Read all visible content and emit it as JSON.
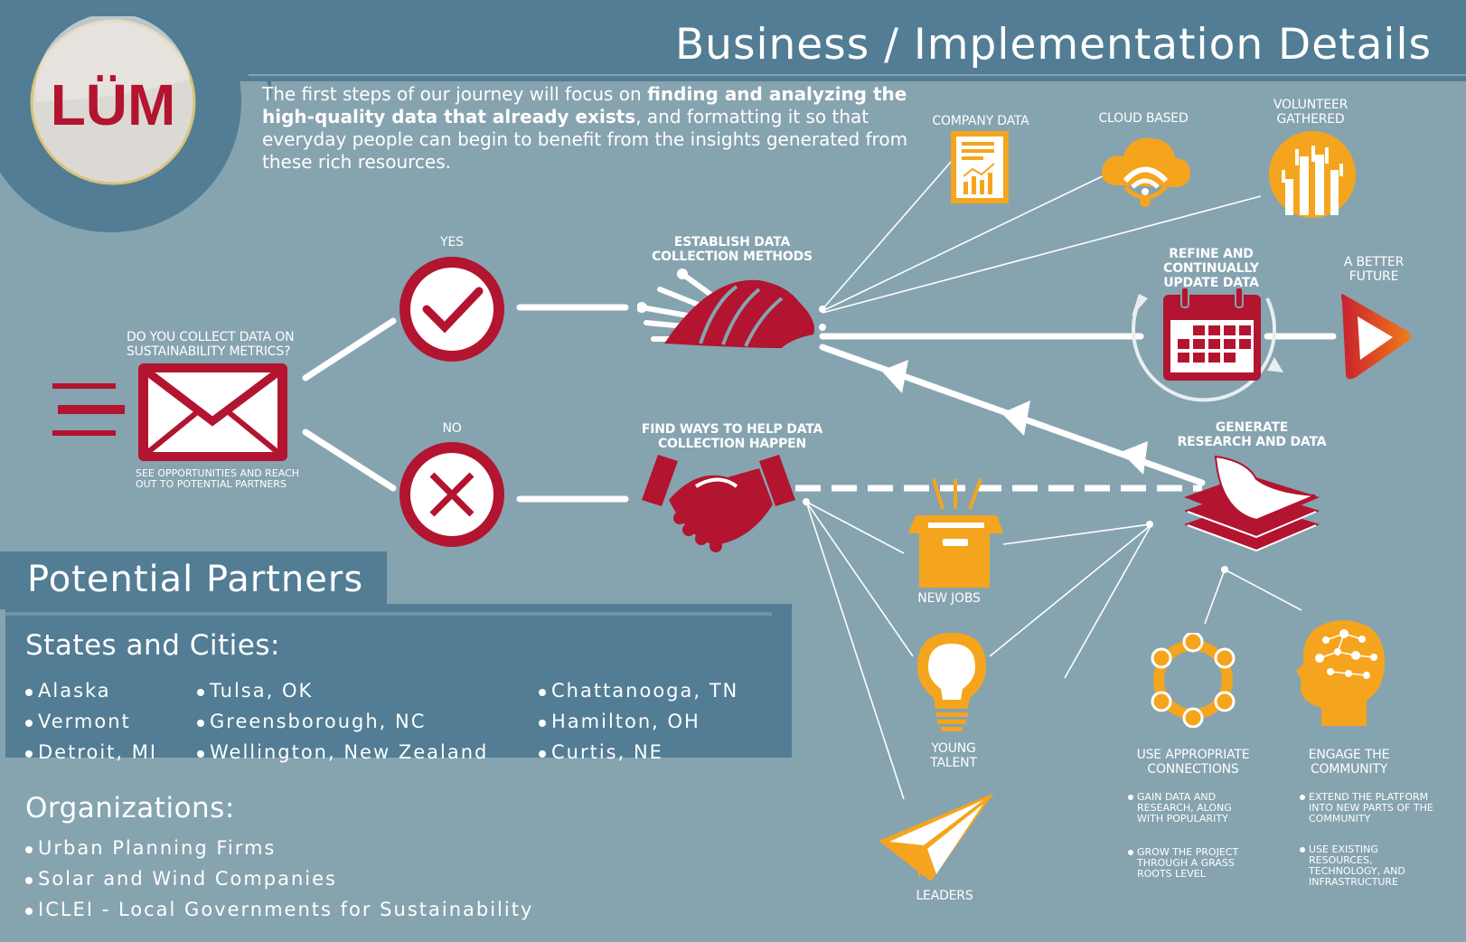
{
  "logo": {
    "text": "LÜM"
  },
  "header": {
    "title": "Business / Implementation Details"
  },
  "intro": {
    "part1": "The first steps of our journey will focus on ",
    "bold": "finding and analyzing the high-quality data that already exists",
    "part2": ", and formatting it so that everyday people can begin to benefit from the insights generated from these rich resources."
  },
  "flow": {
    "question_line1": "DO YOU COLLECT DATA ON",
    "question_line2": "SUSTAINABILITY METRICS?",
    "see_line1": "SEE OPPORTUNITIES AND REACH",
    "see_line2": "OUT TO POTENTIAL PARTNERS",
    "yes": "YES",
    "no": "NO",
    "establish_line1": "ESTABLISH DATA",
    "establish_line2": "COLLECTION METHODS",
    "find_line1": "FIND WAYS TO HELP DATA",
    "find_line2": "COLLECTION HAPPEN",
    "company_data": "COMPANY DATA",
    "cloud_based": "CLOUD BASED",
    "volunteer_line1": "VOLUNTEER",
    "volunteer_line2": "GATHERED",
    "refine_line1": "REFINE AND",
    "refine_line2": "CONTINUALLY",
    "refine_line3": "UPDATE DATA",
    "better_line1": "A BETTER",
    "better_line2": "FUTURE",
    "generate_line1": "GENERATE",
    "generate_line2": "RESEARCH AND DATA",
    "new_jobs": "NEW JOBS",
    "young_line1": "YOUNG",
    "young_line2": "TALENT",
    "leaders": "LEADERS",
    "connections_line1": "USE APPROPRIATE",
    "connections_line2": "CONNECTIONS",
    "community_line1": "ENGAGE THE",
    "community_line2": "COMMUNITY",
    "conn_b1_l1": "GAIN DATA AND",
    "conn_b1_l2": "RESEARCH, ALONG",
    "conn_b1_l3": "WITH POPULARITY",
    "conn_b2_l1": "GROW THE PROJECT",
    "conn_b2_l2": "THROUGH A GRASS",
    "conn_b2_l3": "ROOTS LEVEL",
    "comm_b1_l1": "EXTEND THE PLATFORM",
    "comm_b1_l2": "INTO NEW PARTS OF THE",
    "comm_b1_l3": "COMMUNITY",
    "comm_b2_l1": "USE EXISTING",
    "comm_b2_l2": "RESOURCES,",
    "comm_b2_l3": "TECHNOLOGY, AND",
    "comm_b2_l4": "INFRASTRUCTURE"
  },
  "partners": {
    "title": "Potential Partners",
    "states_heading": "States and Cities:",
    "states": [
      "Alaska",
      "Vermont",
      "Detroit, MI",
      "Tulsa, OK",
      "Greensborough, NC",
      "Wellington, New Zealand",
      "Chattanooga, TN",
      "Hamilton, OH",
      "Curtis, NE"
    ],
    "orgs_heading": "Organizations:",
    "orgs": [
      "Urban Planning Firms",
      "Solar and Wind Companies",
      "ICLEI - Local Governments for Sustainability"
    ]
  },
  "colors": {
    "background": "#86a3b0",
    "panel": "#527d94",
    "crimson": "#b3142f",
    "orange": "#f4a51d",
    "white": "#ffffff"
  }
}
